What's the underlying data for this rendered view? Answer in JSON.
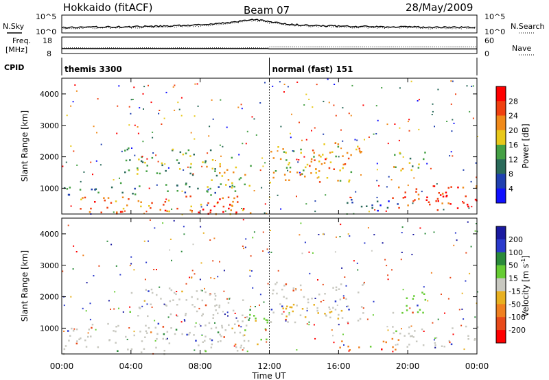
{
  "header": {
    "station": "Hokkaido (fitACF)",
    "beam": "Beam 07",
    "date": "28/May/2009"
  },
  "noise_panel": {
    "left_label": "N.Sky",
    "right_label": "N.Search",
    "left_ticks": [
      "10^5",
      "10^0"
    ],
    "right_ticks": [
      "10^5",
      "10^0"
    ]
  },
  "freq_panel": {
    "left_label_1": "Freq.",
    "left_label_2": "[MHz]",
    "left_ticks": [
      "18",
      "8"
    ],
    "right_label": "Nave",
    "right_ticks": [
      "60",
      "0"
    ]
  },
  "cpid_panel": {
    "label": "CPID",
    "segments": [
      {
        "name": "themis 3300",
        "start_hour": 0
      },
      {
        "name": "normal (fast) 151",
        "start_hour": 12
      }
    ]
  },
  "xaxis": {
    "label": "Time UT",
    "ticks": [
      "00:00",
      "04:00",
      "08:00",
      "12:00",
      "16:00",
      "20:00",
      "00:00"
    ]
  },
  "colors": {
    "power": [
      "#1010ff",
      "#2040b0",
      "#2a6a5a",
      "#45a045",
      "#e8c81a",
      "#f08a1a",
      "#f04010",
      "#ff0000"
    ],
    "velocity": [
      "#1a1aa0",
      "#2a3acc",
      "#2a8a3a",
      "#66cc33",
      "#c8c8c0",
      "#e8b020",
      "#f08020",
      "#e84a1a",
      "#ff0000"
    ]
  },
  "chart_data": [
    {
      "type": "line",
      "panel": "noise",
      "series": [
        {
          "name": "N.Sky",
          "style": "solid"
        },
        {
          "name": "N.Search",
          "style": "dotted"
        }
      ],
      "x": [
        0,
        2,
        4,
        6,
        8,
        9,
        10,
        10.5,
        11,
        11.5,
        12,
        13,
        14,
        16,
        18,
        20,
        22,
        24
      ],
      "series_values": {
        "N.Sky": [
          1.3,
          1.5,
          1.6,
          1.8,
          2.2,
          2.6,
          3.2,
          3.6,
          3.9,
          3.8,
          3.2,
          2.5,
          2.1,
          1.8,
          1.6,
          1.5,
          1.4,
          1.4
        ],
        "N.Search": [
          1.0,
          1.2,
          1.3,
          1.5,
          1.9,
          2.3,
          2.9,
          3.3,
          3.6,
          3.5,
          2.9,
          2.2,
          1.8,
          1.5,
          1.3,
          1.2,
          1.1,
          1.1
        ]
      },
      "ylim": [
        0,
        5
      ],
      "yscale": "log10 exponent"
    },
    {
      "type": "line",
      "panel": "frequency",
      "series": [
        {
          "name": "Freq.",
          "style": "solid"
        },
        {
          "name": "Nave",
          "style": "dotted"
        }
      ],
      "x": [
        0,
        11.9,
        12,
        24
      ],
      "series_values": {
        "Freq.": [
          10.8,
          10.8,
          10.6,
          10.6
        ],
        "Nave": [
          20,
          20,
          24,
          24
        ]
      },
      "ylim_left": [
        8,
        18
      ],
      "ylim_right": [
        0,
        60
      ]
    },
    {
      "type": "heatmap",
      "panel": "power",
      "x_range_hours": [
        0,
        24
      ],
      "ylabel": "Slant Range [km]",
      "yticks": [
        1000,
        2000,
        3000,
        4000
      ],
      "ylim": [
        180,
        4500
      ],
      "colorbar_label": "Power [dB]",
      "colorbar_ticks": [
        "28",
        "24",
        "20",
        "16",
        "12",
        "8",
        "4"
      ],
      "colorbar_range": [
        0,
        30
      ],
      "regions": [
        {
          "t0": 0,
          "t1": 11,
          "r0": 200,
          "r1": 800,
          "value": 22
        },
        {
          "t0": 0,
          "t1": 10,
          "r0": 800,
          "r1": 1200,
          "value": 10
        },
        {
          "t0": 8,
          "t1": 10.5,
          "r0": 200,
          "r1": 700,
          "value": 28
        },
        {
          "t0": 3.5,
          "t1": 9,
          "r0": 1400,
          "r1": 2300,
          "value": 13
        },
        {
          "t0": 8,
          "t1": 11,
          "r0": 1000,
          "r1": 2000,
          "value": 17
        },
        {
          "t0": 12,
          "t1": 17.5,
          "r0": 1200,
          "r1": 2500,
          "value": 18
        },
        {
          "t0": 14,
          "t1": 17,
          "r0": 1500,
          "r1": 2100,
          "value": 22
        },
        {
          "t0": 19,
          "t1": 24,
          "r0": 400,
          "r1": 1100,
          "value": 24
        },
        {
          "t0": 21,
          "t1": 24,
          "r0": 300,
          "r1": 800,
          "value": 27
        },
        {
          "t0": 19,
          "t1": 21,
          "r0": 1500,
          "r1": 2300,
          "value": 15
        },
        {
          "t0": 16,
          "t1": 19.5,
          "r0": 300,
          "r1": 700,
          "value": 8
        }
      ]
    },
    {
      "type": "heatmap",
      "panel": "velocity",
      "x_range_hours": [
        0,
        24
      ],
      "ylabel": "Slant Range [km]",
      "yticks": [
        1000,
        2000,
        3000,
        4000
      ],
      "ylim": [
        180,
        4500
      ],
      "colorbar_label": "Velocity [m s^-1]",
      "colorbar_ticks": [
        "200",
        "100",
        "50",
        "15",
        "-15",
        "-50",
        "-100",
        "-200"
      ],
      "colorbar_range": [
        -250,
        250
      ],
      "regions": [
        {
          "t0": 0,
          "t1": 11,
          "r0": 200,
          "r1": 1200,
          "value": 0
        },
        {
          "t0": 3.5,
          "t1": 9,
          "r0": 1400,
          "r1": 2300,
          "value": 0
        },
        {
          "t0": 8,
          "t1": 11,
          "r0": 1000,
          "r1": 2000,
          "value": 5
        },
        {
          "t0": 10.5,
          "t1": 12,
          "r0": 500,
          "r1": 1500,
          "value": 30
        },
        {
          "t0": 12,
          "t1": 17.5,
          "r0": 1200,
          "r1": 2500,
          "value": 0
        },
        {
          "t0": 12.5,
          "t1": 16,
          "r0": 1300,
          "r1": 1800,
          "value": -30
        },
        {
          "t0": 19,
          "t1": 24,
          "r0": 400,
          "r1": 1100,
          "value": 0
        },
        {
          "t0": 19,
          "t1": 21,
          "r0": 1500,
          "r1": 2300,
          "value": 30
        },
        {
          "t0": 16,
          "t1": 19.5,
          "r0": 300,
          "r1": 700,
          "value": -80
        }
      ]
    }
  ]
}
